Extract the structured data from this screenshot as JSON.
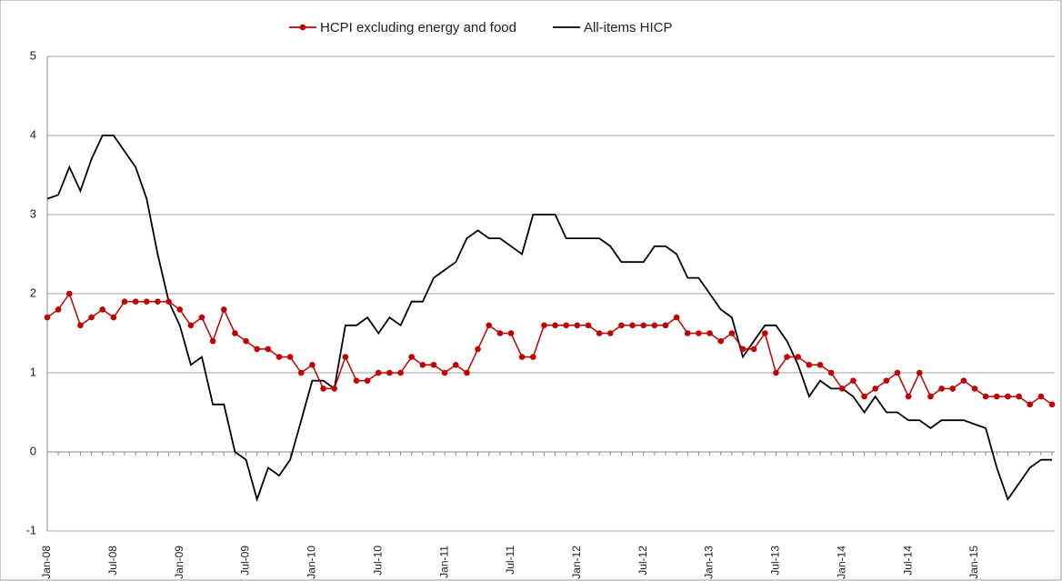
{
  "chart_data": {
    "type": "line",
    "categories": [
      "Jan-08",
      null,
      null,
      null,
      null,
      null,
      "Jul-08",
      null,
      null,
      null,
      null,
      null,
      "Jan-09",
      null,
      null,
      null,
      null,
      null,
      "Jul-09",
      null,
      null,
      null,
      null,
      null,
      "Jan-10",
      null,
      null,
      null,
      null,
      null,
      "Jul-10",
      null,
      null,
      null,
      null,
      null,
      "Jan-11",
      null,
      null,
      null,
      null,
      null,
      "Jul-11",
      null,
      null,
      null,
      null,
      null,
      "Jan-12",
      null,
      null,
      null,
      null,
      null,
      "Jul-12",
      null,
      null,
      null,
      null,
      null,
      "Jan-13",
      null,
      null,
      null,
      null,
      null,
      "Jul-13",
      null,
      null,
      null,
      null,
      null,
      "Jan-14",
      null,
      null,
      null,
      null,
      null,
      "Jul-14",
      null,
      null,
      null,
      null,
      null,
      "Jan-15",
      null,
      null,
      null,
      null,
      null,
      null,
      null
    ],
    "series": [
      {
        "name": "HCPI excluding energy and food",
        "color": "#c00000",
        "markers": true,
        "values": [
          1.7,
          1.8,
          2.0,
          1.6,
          1.7,
          1.8,
          1.7,
          1.9,
          1.9,
          1.9,
          1.9,
          1.9,
          1.8,
          1.6,
          1.7,
          1.4,
          1.8,
          1.5,
          1.4,
          1.3,
          1.3,
          1.2,
          1.2,
          1.0,
          1.1,
          0.8,
          0.8,
          1.2,
          0.9,
          0.9,
          1.0,
          1.0,
          1.0,
          1.2,
          1.1,
          1.1,
          1.0,
          1.1,
          1.0,
          1.3,
          1.6,
          1.5,
          1.5,
          1.2,
          1.2,
          1.6,
          1.6,
          1.6,
          1.6,
          1.6,
          1.5,
          1.5,
          1.6,
          1.6,
          1.6,
          1.6,
          1.6,
          1.7,
          1.5,
          1.5,
          1.5,
          1.4,
          1.5,
          1.3,
          1.3,
          1.5,
          1.0,
          1.2,
          1.2,
          1.1,
          1.1,
          1.0,
          0.8,
          0.9,
          0.7,
          0.8,
          0.9,
          1.0,
          0.7,
          1.0,
          0.7,
          0.8,
          0.8,
          0.9,
          0.8,
          0.7,
          0.7,
          0.7,
          0.7,
          0.6,
          0.7,
          0.6
        ]
      },
      {
        "name": "All-items HICP",
        "color": "#000000",
        "markers": false,
        "values": [
          3.2,
          3.25,
          3.6,
          3.3,
          3.7,
          4.0,
          4.0,
          3.8,
          3.6,
          3.2,
          2.5,
          1.9,
          1.6,
          1.1,
          1.2,
          0.6,
          0.6,
          0.0,
          -0.1,
          -0.6,
          -0.2,
          -0.3,
          -0.1,
          0.4,
          0.9,
          0.9,
          0.8,
          1.6,
          1.6,
          1.7,
          1.5,
          1.7,
          1.6,
          1.9,
          1.9,
          2.2,
          2.3,
          2.4,
          2.7,
          2.8,
          2.7,
          2.7,
          2.6,
          2.5,
          3.0,
          3.0,
          3.0,
          2.7,
          2.7,
          2.7,
          2.7,
          2.6,
          2.4,
          2.4,
          2.4,
          2.6,
          2.6,
          2.5,
          2.2,
          2.2,
          2.0,
          1.8,
          1.7,
          1.2,
          1.4,
          1.6,
          1.6,
          1.4,
          1.1,
          0.7,
          0.9,
          0.8,
          0.8,
          0.7,
          0.5,
          0.7,
          0.5,
          0.5,
          0.4,
          0.4,
          0.3,
          0.4,
          0.4,
          0.4,
          0.35,
          0.3,
          -0.2,
          -0.6,
          -0.4,
          -0.2,
          -0.1,
          -0.1
        ]
      }
    ],
    "ylim": [
      -1,
      5
    ],
    "yticks": [
      -1,
      0,
      1,
      2,
      3,
      4,
      5
    ],
    "grid": true,
    "legend": "top"
  }
}
